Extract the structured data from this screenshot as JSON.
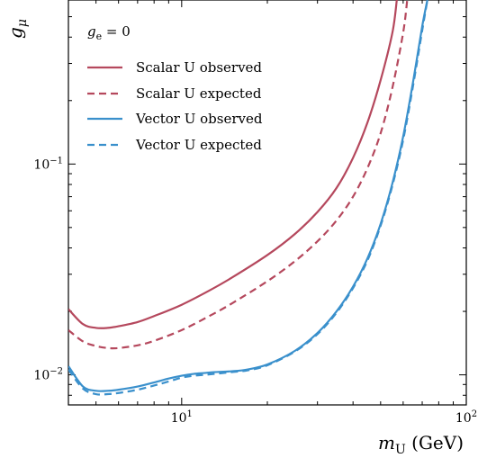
{
  "chart_data": {
    "type": "line",
    "xscale": "log",
    "yscale": "log",
    "xlim": [
      4.0,
      100.0
    ],
    "ylim": [
      0.0072,
      0.6
    ],
    "grid": false,
    "legend_position": "top-left",
    "xlabel": "m_U (GeV)",
    "xlabel_main": "m",
    "xlabel_sub": "U",
    "xlabel_tail": " (GeV)",
    "ylabel": "g_μ",
    "ylabel_main": "g",
    "ylabel_sub": "μ",
    "annotation": "g_e = 0",
    "annotation_main": "g",
    "annotation_sub": "e",
    "annotation_tail": " = 0",
    "x_ticks": [
      {
        "value": 10,
        "base": "10",
        "exp": "1"
      },
      {
        "value": 100,
        "base": "10",
        "exp": "2"
      }
    ],
    "y_ticks": [
      {
        "value": 0.01,
        "base": "10",
        "exp": "−2"
      },
      {
        "value": 0.1,
        "base": "10",
        "exp": "−1"
      }
    ],
    "series": [
      {
        "name": "Scalar U observed",
        "color": "#b5485d",
        "dash": "solid",
        "x": [
          4.0,
          4.5,
          5.0,
          5.5,
          6.0,
          7.0,
          8.0,
          10.0,
          12.5,
          15.0,
          20.0,
          25.0,
          30.0,
          35.0,
          40.0,
          45.0,
          50.0,
          55.0,
          57.0
        ],
        "y": [
          0.0205,
          0.0174,
          0.0167,
          0.0167,
          0.017,
          0.0178,
          0.019,
          0.0215,
          0.0251,
          0.0289,
          0.037,
          0.0466,
          0.0592,
          0.077,
          0.107,
          0.158,
          0.25,
          0.42,
          0.6
        ]
      },
      {
        "name": "Scalar U expected",
        "color": "#b5485d",
        "dash": "dashed",
        "x": [
          4.0,
          4.5,
          5.0,
          5.5,
          6.0,
          7.0,
          8.0,
          10.0,
          12.5,
          15.0,
          20.0,
          25.0,
          30.0,
          35.0,
          40.0,
          45.0,
          50.0,
          55.0,
          60.0,
          62.0
        ],
        "y": [
          0.0163,
          0.0144,
          0.0137,
          0.0134,
          0.0134,
          0.0138,
          0.0145,
          0.0163,
          0.019,
          0.0218,
          0.0278,
          0.0346,
          0.043,
          0.054,
          0.07,
          0.096,
          0.14,
          0.23,
          0.42,
          0.6
        ]
      },
      {
        "name": "Vector U observed",
        "color": "#3a90cc",
        "dash": "solid",
        "x": [
          4.0,
          4.5,
          5.0,
          5.5,
          6.0,
          7.0,
          8.0,
          9.0,
          10.0,
          11.0,
          12.0,
          13.0,
          15.0,
          17.0,
          20.0,
          25.0,
          30.0,
          35.0,
          40.0,
          45.0,
          50.0,
          55.0,
          60.0,
          65.0,
          70.0,
          73.0
        ],
        "y": [
          0.011,
          0.0088,
          0.0084,
          0.0084,
          0.0085,
          0.0088,
          0.0092,
          0.0096,
          0.0099,
          0.0101,
          0.0102,
          0.0103,
          0.0104,
          0.0106,
          0.0112,
          0.013,
          0.0158,
          0.02,
          0.0262,
          0.0358,
          0.052,
          0.081,
          0.135,
          0.245,
          0.45,
          0.6
        ]
      },
      {
        "name": "Vector U expected",
        "color": "#3a90cc",
        "dash": "dashed",
        "x": [
          4.0,
          4.5,
          5.0,
          5.5,
          6.0,
          7.0,
          8.0,
          9.0,
          10.0,
          11.0,
          12.0,
          13.0,
          15.0,
          17.0,
          20.0,
          25.0,
          30.0,
          35.0,
          40.0,
          45.0,
          50.0,
          55.0,
          60.0,
          65.0,
          70.0,
          73.0
        ],
        "y": [
          0.0106,
          0.0086,
          0.0081,
          0.0081,
          0.0082,
          0.0085,
          0.0089,
          0.0093,
          0.0097,
          0.0099,
          0.01,
          0.0101,
          0.0103,
          0.0105,
          0.0111,
          0.0129,
          0.0156,
          0.0197,
          0.0258,
          0.035,
          0.051,
          0.079,
          0.13,
          0.235,
          0.43,
          0.6
        ]
      }
    ]
  }
}
